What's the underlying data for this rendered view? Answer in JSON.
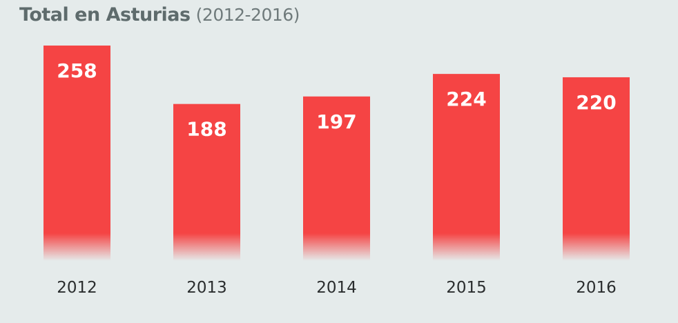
{
  "chart_data": {
    "type": "bar",
    "title": "Total en Asturias",
    "subtitle": "(2012-2016)",
    "categories": [
      "2012",
      "2013",
      "2014",
      "2015",
      "2016"
    ],
    "values": [
      258,
      188,
      197,
      224,
      220
    ],
    "data_labels": [
      "258",
      "188",
      "197",
      "224",
      "220"
    ],
    "xlabel": "",
    "ylabel": "",
    "ylim": [
      0,
      258
    ],
    "grid": false,
    "legend": "none",
    "colors": {
      "bar": "#f54444",
      "background": "#e5ebeb",
      "label": "#ffffff",
      "title": "#5e6b6c"
    }
  }
}
